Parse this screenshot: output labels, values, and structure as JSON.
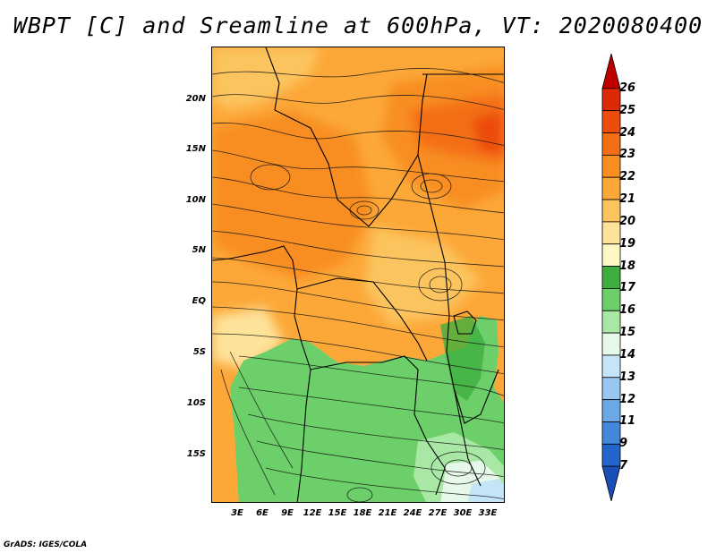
{
  "title": "WBPT [C] and Sreamline at 600hPa, VT: 2020080400",
  "credit": "GrADS: IGES/COLA",
  "map": {
    "lat_labels": [
      "20N",
      "15N",
      "10N",
      "5N",
      "EQ",
      "5S",
      "10S",
      "15S"
    ],
    "lon_labels": [
      "3E",
      "6E",
      "9E",
      "12E",
      "15E",
      "18E",
      "21E",
      "24E",
      "27E",
      "30E",
      "33E"
    ],
    "lat_range": [
      -21,
      24
    ],
    "lon_range": [
      0,
      35
    ]
  },
  "colorbar": {
    "labels": [
      "26",
      "25",
      "24",
      "23",
      "22",
      "21",
      "20",
      "19",
      "18",
      "17",
      "16",
      "15",
      "14",
      "13",
      "12",
      "11",
      "9",
      "7"
    ],
    "colors": [
      "#c00000",
      "#dc2a06",
      "#ec4c0c",
      "#f46e16",
      "#f88e22",
      "#fca838",
      "#fcc45e",
      "#fde29a",
      "#fff8c4",
      "#3fae3f",
      "#6ccf6a",
      "#a8e8a4",
      "#e6f8ea",
      "#c4e4f8",
      "#98c8f0",
      "#6aa8e8",
      "#4488dc",
      "#2266cc",
      "#1a4fb8"
    ]
  }
}
